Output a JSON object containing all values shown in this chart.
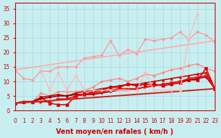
{
  "title": "",
  "xlabel": "Vent moyen/en rafales ( km/h )",
  "ylabel": "",
  "bg_color": "#c8eef0",
  "grid_color": "#aadddd",
  "x_ticks": [
    0,
    1,
    2,
    3,
    4,
    5,
    6,
    7,
    8,
    9,
    10,
    11,
    12,
    13,
    14,
    15,
    16,
    17,
    18,
    19,
    20,
    21,
    22,
    23
  ],
  "y_ticks": [
    0,
    5,
    10,
    15,
    20,
    25,
    30,
    35
  ],
  "xlim": [
    0,
    23
  ],
  "ylim": [
    0,
    37
  ],
  "lines": [
    {
      "color": "#ff9999",
      "linewidth": 1.0,
      "marker": "D",
      "markersize": 2,
      "x": [
        0,
        1,
        2,
        3,
        4,
        5,
        6,
        7,
        8,
        9,
        10,
        11,
        12,
        13,
        14,
        15,
        16,
        17,
        18,
        19,
        20,
        21,
        22,
        23
      ],
      "y": [
        14,
        11,
        10.5,
        13.5,
        13.5,
        15,
        15,
        15,
        18,
        18.5,
        19,
        24,
        19,
        21,
        19.5,
        24.5,
        24,
        24.5,
        25,
        27,
        24.5,
        27,
        26,
        23.5
      ]
    },
    {
      "color": "#ffaaaa",
      "linewidth": 1.2,
      "marker": null,
      "markersize": 0,
      "x": [
        0,
        23
      ],
      "y": [
        14,
        24
      ]
    },
    {
      "color": "#ff8888",
      "linewidth": 1.0,
      "marker": "D",
      "markersize": 2,
      "x": [
        0,
        1,
        2,
        3,
        4,
        5,
        6,
        7,
        8,
        9,
        10,
        11,
        12,
        13,
        14,
        15,
        16,
        17,
        18,
        19,
        20,
        21,
        22,
        23
      ],
      "y": [
        2.5,
        3,
        3,
        6,
        5,
        6.5,
        6.5,
        6.5,
        7,
        8,
        10,
        10.5,
        11,
        10,
        11,
        12.5,
        12,
        13,
        14,
        14.5,
        15.5,
        16,
        14.5,
        13.5
      ]
    },
    {
      "color": "#dd0000",
      "linewidth": 1.2,
      "marker": "s",
      "markersize": 2.5,
      "x": [
        0,
        1,
        2,
        3,
        4,
        5,
        6,
        7,
        8,
        9,
        10,
        11,
        12,
        13,
        14,
        15,
        16,
        17,
        18,
        19,
        20,
        21,
        22,
        23
      ],
      "y": [
        2.5,
        3,
        3,
        4.5,
        2.5,
        2,
        2,
        5,
        5.5,
        6.5,
        7,
        8,
        8,
        9,
        8.5,
        9,
        9,
        8.5,
        9,
        9.5,
        10.5,
        10.5,
        14.5,
        7.5
      ]
    },
    {
      "color": "#cc0000",
      "linewidth": 1.2,
      "marker": "^",
      "markersize": 2.5,
      "x": [
        0,
        1,
        2,
        3,
        4,
        5,
        6,
        7,
        8,
        9,
        10,
        11,
        12,
        13,
        14,
        15,
        16,
        17,
        18,
        19,
        20,
        21,
        22,
        23
      ],
      "y": [
        2.5,
        3,
        3,
        4.5,
        5,
        5.5,
        5,
        6,
        6.5,
        7,
        7.5,
        8,
        8.5,
        9,
        9,
        9.5,
        10,
        10.5,
        11,
        11.5,
        12,
        12.5,
        13,
        7.5
      ]
    },
    {
      "color": "#990000",
      "linewidth": 1.2,
      "marker": "v",
      "markersize": 2.5,
      "x": [
        0,
        1,
        2,
        3,
        4,
        5,
        6,
        7,
        8,
        9,
        10,
        11,
        12,
        13,
        14,
        15,
        16,
        17,
        18,
        19,
        20,
        21,
        22,
        23
      ],
      "y": [
        2.5,
        3,
        3,
        4,
        4.5,
        5,
        5,
        5.5,
        5.5,
        5.5,
        6,
        6.5,
        7,
        7,
        7.5,
        8,
        8.5,
        9,
        9.5,
        10,
        10.5,
        11,
        11.5,
        7.5
      ]
    },
    {
      "color": "#ff0000",
      "linewidth": 1.2,
      "marker": ">",
      "markersize": 2.5,
      "x": [
        0,
        1,
        2,
        3,
        4,
        5,
        6,
        7,
        8,
        9,
        10,
        11,
        12,
        13,
        14,
        15,
        16,
        17,
        18,
        19,
        20,
        21,
        22,
        23
      ],
      "y": [
        2.5,
        3,
        3,
        3,
        3,
        4,
        4,
        5,
        5.5,
        6,
        6.5,
        7,
        7.5,
        7.5,
        7.5,
        8,
        8.5,
        9,
        9.5,
        10,
        11,
        11.5,
        12,
        7.5
      ]
    },
    {
      "color": "#cc2222",
      "linewidth": 1.5,
      "marker": null,
      "markersize": 0,
      "x": [
        0,
        23
      ],
      "y": [
        2.5,
        7.5
      ]
    },
    {
      "color": "#ffbbbb",
      "linewidth": 1.0,
      "marker": "D",
      "markersize": 2,
      "x": [
        3,
        4,
        5,
        6,
        7,
        8,
        9,
        10,
        11,
        12,
        13,
        14,
        15,
        16,
        17,
        18,
        19,
        20,
        21
      ],
      "y": [
        14,
        7,
        13,
        7,
        12,
        7,
        7,
        7,
        7,
        7,
        7,
        7,
        13,
        7,
        7,
        7,
        7,
        25,
        33
      ]
    }
  ],
  "arrow_color": "#cc0000",
  "tick_color": "#cc0000",
  "tick_fontsize": 5.5,
  "xlabel_fontsize": 7,
  "xlabel_color": "#cc0000",
  "xlabel_fontweight": "bold"
}
